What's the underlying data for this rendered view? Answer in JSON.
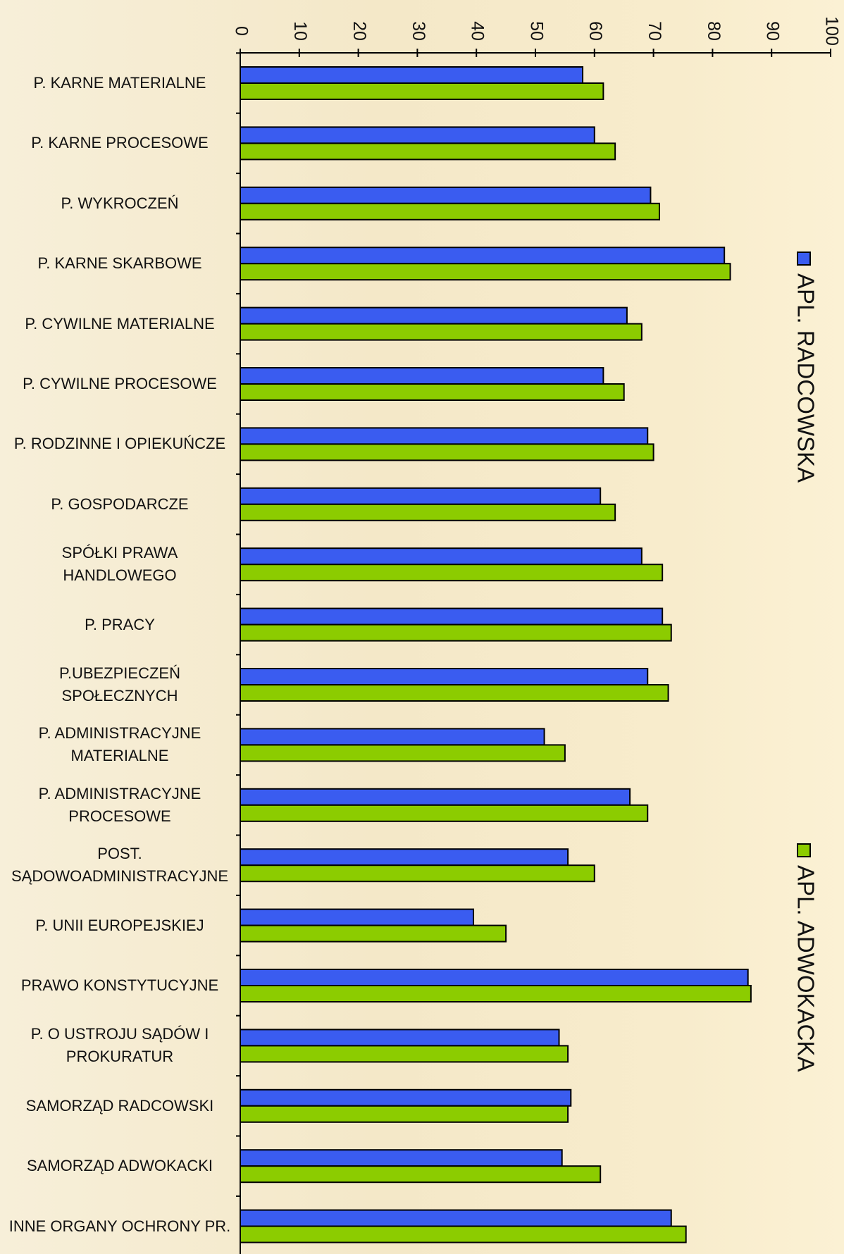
{
  "chart_data": {
    "type": "bar",
    "orientation": "horizontal",
    "categories": [
      "P. KARNE MATERIALNE",
      "P. KARNE PROCESOWE",
      "P. WYKROCZEŃ",
      "P. KARNE SKARBOWE",
      "P. CYWILNE MATERIALNE",
      "P. CYWILNE PROCESOWE",
      "P. RODZINNE I OPIEKUŃCZE",
      "P. GOSPODARCZE",
      "SPÓŁKI PRAWA\nHANDLOWEGO",
      "P. PRACY",
      "P.UBEZPIECZEŃ\nSPOŁECZNYCH",
      "P. ADMINISTRACYJNE\nMATERIALNE",
      "P. ADMINISTRACYJNE\nPROCESOWE",
      "POST.\nSĄDOWOADMINISTRACYJNE",
      "P. UNII EUROPEJSKIEJ",
      "PRAWO KONSTYTUCYJNE",
      "P. O USTROJU SĄDÓW I\nPROKURATUR",
      "SAMORZĄD RADCOWSKI",
      "SAMORZĄD ADWOKACKI",
      "INNE ORGANY OCHRONY PR."
    ],
    "series": [
      {
        "name": "APL. RADCOWSKA",
        "color": "#3a5cf0",
        "values": [
          58,
          60,
          69.5,
          82,
          65.5,
          61.5,
          69,
          61,
          68,
          71.5,
          69,
          51.5,
          66,
          55.5,
          39.5,
          86,
          54,
          56,
          54.5,
          73
        ]
      },
      {
        "name": "APL. ADWOKACKA",
        "color": "#8ccc00",
        "values": [
          61.5,
          63.5,
          71,
          83,
          68,
          65,
          70,
          63.5,
          71.5,
          73,
          72.5,
          55,
          69,
          60,
          45,
          86.5,
          55.5,
          55.5,
          61,
          75.5
        ]
      }
    ],
    "xlim": [
      0,
      100
    ],
    "xticks": [
      0,
      10,
      20,
      30,
      40,
      50,
      60,
      70,
      80,
      90,
      100
    ],
    "legend": "right"
  }
}
